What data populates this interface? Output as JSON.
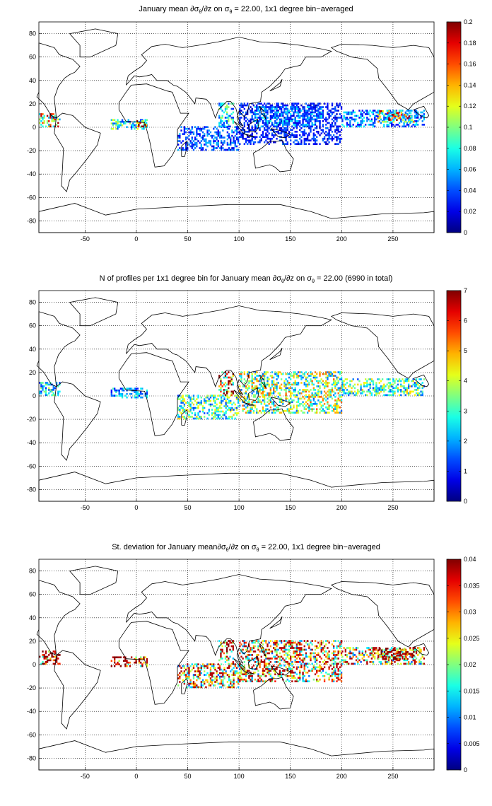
{
  "chart_data": [
    {
      "type": "heatmap",
      "title": "January mean ∂σθ/∂z on σθ = 22.00, 1x1 degree bin−averaged",
      "title_parts": {
        "pre": "January mean ∂σ",
        "sub1": "θ",
        "mid": "/∂z on σ",
        "sub2": "θ",
        "post": " = 22.00, 1x1 degree bin−averaged"
      },
      "xlim": [
        -95,
        290
      ],
      "ylim": [
        -90,
        90
      ],
      "xticks": [
        "-50",
        "0",
        "50",
        "100",
        "150",
        "200",
        "250"
      ],
      "yticks": [
        "80",
        "60",
        "40",
        "20",
        "0",
        "-20",
        "-40",
        "-60",
        "-80"
      ],
      "grid": true,
      "colorbar": {
        "colormap": "jet",
        "range": [
          0,
          0.2
        ],
        "ticks": [
          "0.2",
          "0.18",
          "0.16",
          "0.14",
          "0.12",
          "0.1",
          "0.08",
          "0.06",
          "0.04",
          "0.02",
          "0"
        ]
      },
      "data_regions": [
        {
          "lon": [
            -95,
            -75
          ],
          "lat": [
            0,
            12
          ],
          "value": 0.13
        },
        {
          "lon": [
            -25,
            10
          ],
          "lat": [
            -2,
            6
          ],
          "value": 0.08
        },
        {
          "lon": [
            0,
            10
          ],
          "lat": [
            0,
            5
          ],
          "value": 0.15
        },
        {
          "lon": [
            40,
            100
          ],
          "lat": [
            -20,
            0
          ],
          "value": 0.04
        },
        {
          "lon": [
            80,
            95
          ],
          "lat": [
            0,
            20
          ],
          "value": 0.07
        },
        {
          "lon": [
            100,
            200
          ],
          "lat": [
            -15,
            20
          ],
          "value": 0.03
        },
        {
          "lon": [
            115,
            180
          ],
          "lat": [
            0,
            18
          ],
          "value": 0.05
        },
        {
          "lon": [
            200,
            280
          ],
          "lat": [
            0,
            15
          ],
          "value": 0.05
        },
        {
          "lon": [
            235,
            270
          ],
          "lat": [
            4,
            14
          ],
          "value": 0.13
        }
      ]
    },
    {
      "type": "heatmap",
      "title": "N of profiles per 1x1 degree bin for January mean ∂σθ/∂z on σθ = 22.00 (6990 in total)",
      "title_parts": {
        "pre": "N of profiles per 1x1 degree bin for January mean ∂σ",
        "sub1": "θ",
        "mid": "/∂z on σ",
        "sub2": "θ",
        "post": " = 22.00 (6990 in total)"
      },
      "xlim": [
        -95,
        290
      ],
      "ylim": [
        -90,
        90
      ],
      "xticks": [
        "-50",
        "0",
        "50",
        "100",
        "150",
        "200",
        "250"
      ],
      "yticks": [
        "80",
        "60",
        "40",
        "20",
        "0",
        "-20",
        "-40",
        "-60",
        "-80"
      ],
      "grid": true,
      "colorbar": {
        "colormap": "jet",
        "range": [
          0,
          7
        ],
        "ticks": [
          "7",
          "6",
          "5",
          "4",
          "3",
          "2",
          "1",
          "0"
        ]
      },
      "data_regions": [
        {
          "lon": [
            -95,
            -75
          ],
          "lat": [
            0,
            12
          ],
          "value": 2.5
        },
        {
          "lon": [
            -25,
            10
          ],
          "lat": [
            -2,
            6
          ],
          "value": 2
        },
        {
          "lon": [
            40,
            100
          ],
          "lat": [
            -20,
            0
          ],
          "value": 3
        },
        {
          "lon": [
            80,
            95
          ],
          "lat": [
            0,
            20
          ],
          "value": 5.5
        },
        {
          "lon": [
            100,
            200
          ],
          "lat": [
            -15,
            20
          ],
          "value": 3.5
        },
        {
          "lon": [
            200,
            280
          ],
          "lat": [
            0,
            15
          ],
          "value": 3
        }
      ]
    },
    {
      "type": "heatmap",
      "title": "St. deviation for January mean∂σθ/∂z on σθ = 22.00, 1x1 degree bin−averaged",
      "title_parts": {
        "pre": "St. deviation for January mean∂σ",
        "sub1": "θ",
        "mid": "/∂z on σ",
        "sub2": "θ",
        "post": " = 22.00, 1x1 degree bin−averaged"
      },
      "xlim": [
        -95,
        290
      ],
      "ylim": [
        -90,
        90
      ],
      "xticks": [
        "-50",
        "0",
        "50",
        "100",
        "150",
        "200",
        "250"
      ],
      "yticks": [
        "80",
        "60",
        "40",
        "20",
        "0",
        "-20",
        "-40",
        "-60",
        "-80"
      ],
      "grid": true,
      "colorbar": {
        "colormap": "jet",
        "range": [
          0,
          0.04
        ],
        "ticks": [
          "0.04",
          "0.035",
          "0.03",
          "0.025",
          "0.02",
          "0.015",
          "0.01",
          "0.005",
          "0"
        ]
      },
      "data_regions": [
        {
          "lon": [
            -95,
            -75
          ],
          "lat": [
            0,
            12
          ],
          "value": 0.035
        },
        {
          "lon": [
            -25,
            10
          ],
          "lat": [
            -2,
            6
          ],
          "value": 0.036
        },
        {
          "lon": [
            40,
            100
          ],
          "lat": [
            -20,
            0
          ],
          "value": 0.02
        },
        {
          "lon": [
            80,
            95
          ],
          "lat": [
            0,
            20
          ],
          "value": 0.03
        },
        {
          "lon": [
            100,
            200
          ],
          "lat": [
            -15,
            20
          ],
          "value": 0.022
        },
        {
          "lon": [
            200,
            280
          ],
          "lat": [
            0,
            15
          ],
          "value": 0.02
        },
        {
          "lon": [
            235,
            270
          ],
          "lat": [
            4,
            14
          ],
          "value": 0.038
        }
      ]
    }
  ]
}
